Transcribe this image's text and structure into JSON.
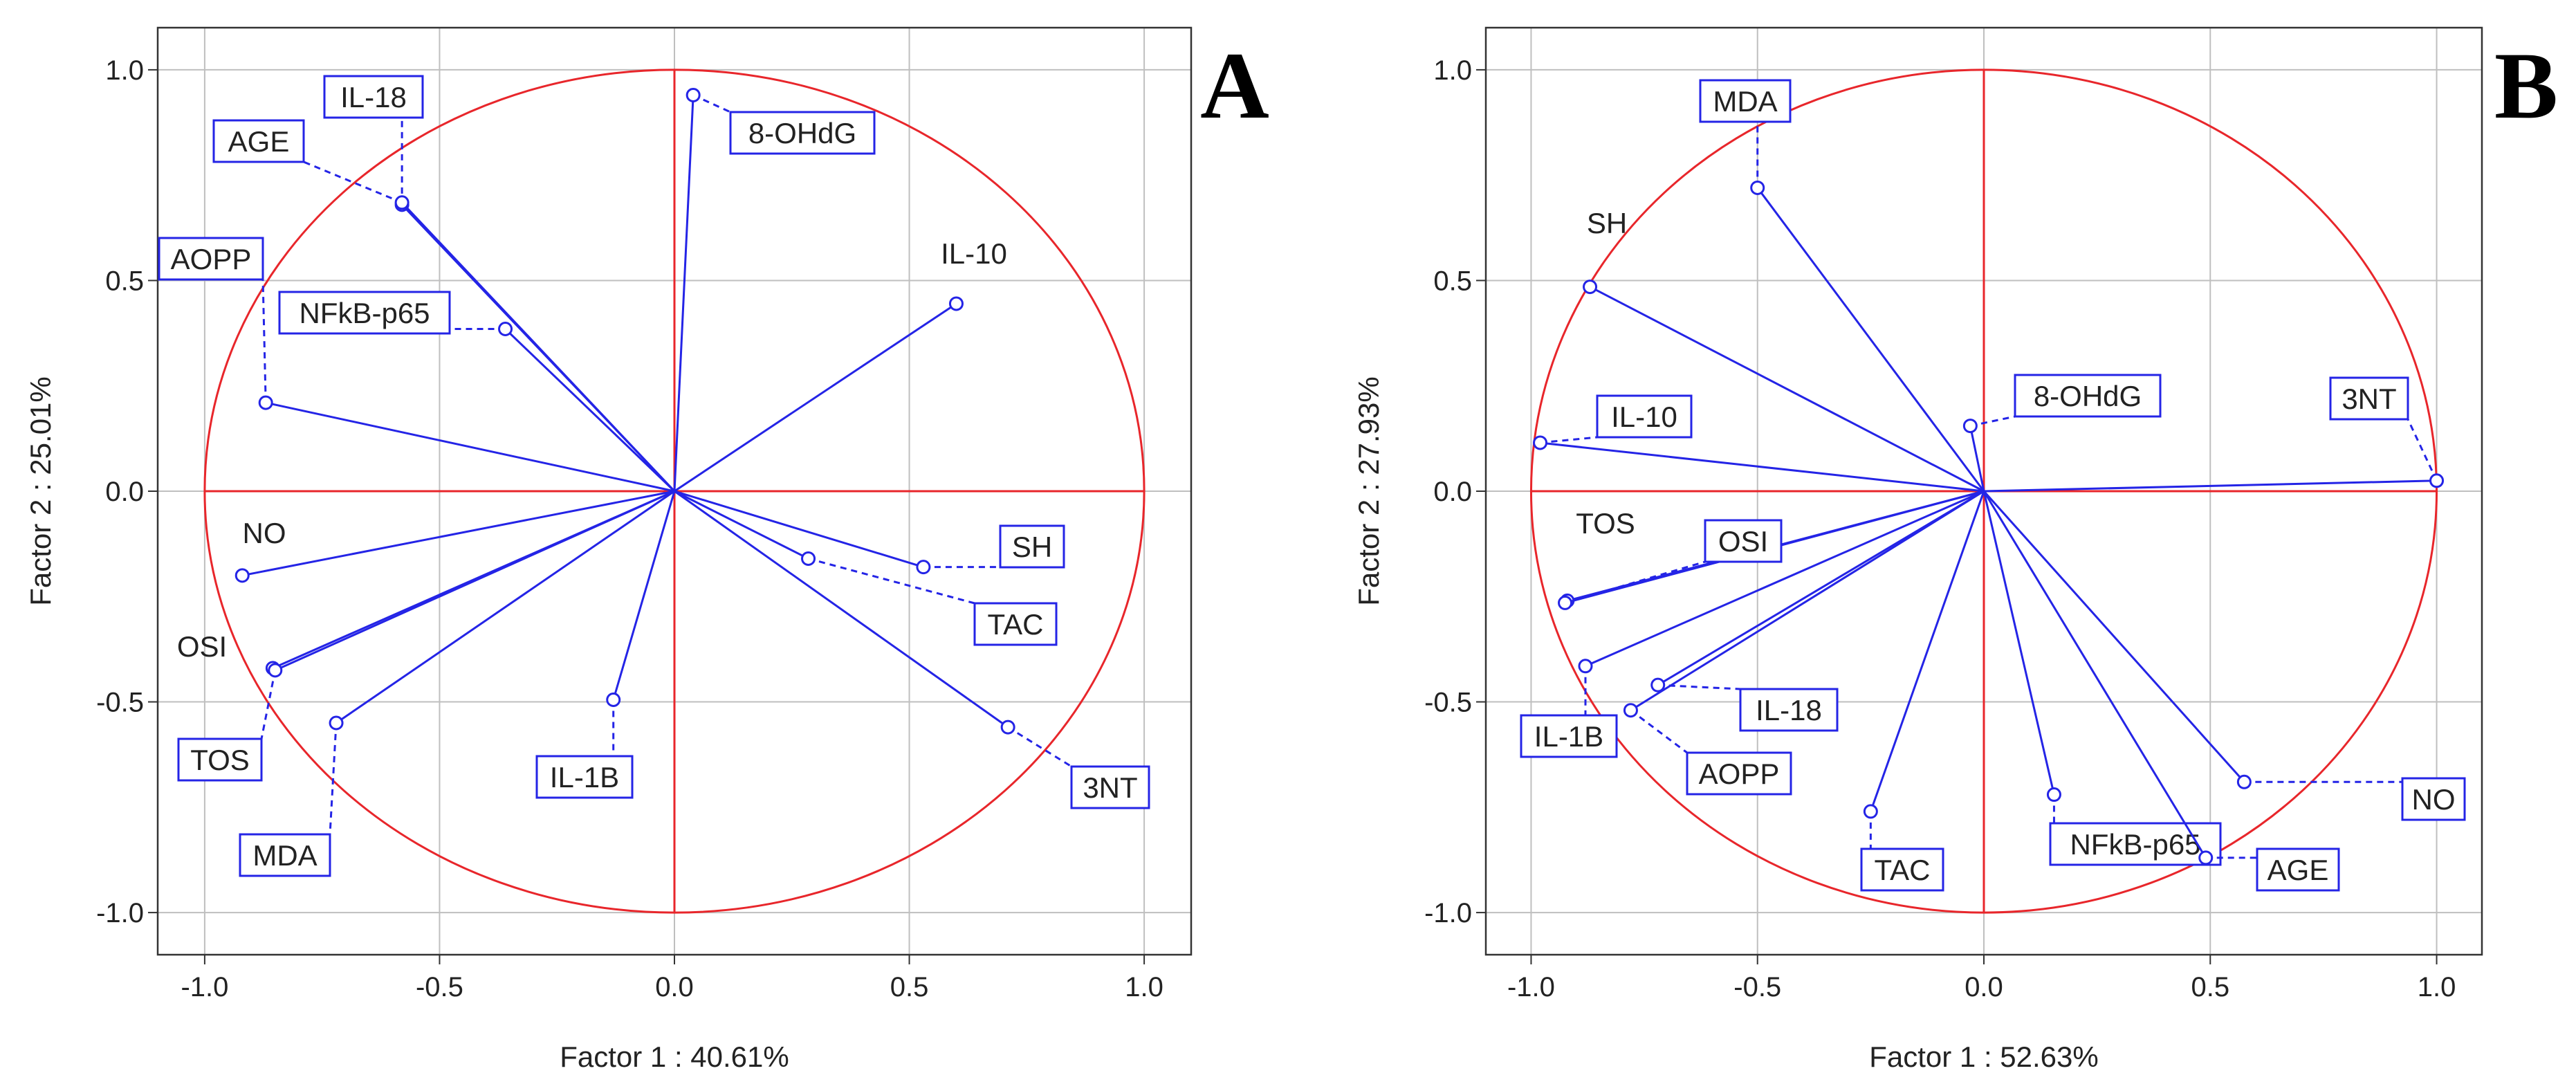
{
  "colors": {
    "circle": "#e8262b",
    "axis_lines": "#e8262b",
    "vector": "#2424e6",
    "label_border": "#2424e6",
    "text": "#222222",
    "grid": "#bfbfbf"
  },
  "chart_data": [
    {
      "type": "scatter",
      "subtype": "pca-correlation-circle",
      "panel": "A",
      "xlabel": "Factor 1 : 40.61%",
      "ylabel": "Factor 2 : 25.01%",
      "xlim": [
        -1.1,
        1.1
      ],
      "ylim": [
        -1.1,
        1.1
      ],
      "xticks": [
        "-1.0",
        "-0.5",
        "0.0",
        "0.5",
        "1.0"
      ],
      "yticks": [
        "-1.0",
        "-0.5",
        "0.0",
        "0.5",
        "1.0"
      ],
      "grid": true,
      "points": [
        {
          "name": "8-OHdG",
          "x": 0.04,
          "y": 0.94,
          "boxed": true
        },
        {
          "name": "IL-18",
          "x": -0.58,
          "y": 0.68,
          "boxed": true
        },
        {
          "name": "AGE",
          "x": -0.58,
          "y": 0.685,
          "boxed": true
        },
        {
          "name": "AOPP",
          "x": -0.87,
          "y": 0.21,
          "boxed": true
        },
        {
          "name": "NFkB-p65",
          "x": -0.36,
          "y": 0.385,
          "boxed": true
        },
        {
          "name": "IL-10",
          "x": 0.6,
          "y": 0.445,
          "boxed": false
        },
        {
          "name": "NO",
          "x": -0.92,
          "y": -0.2,
          "boxed": false
        },
        {
          "name": "OSI",
          "x": -0.855,
          "y": -0.42,
          "boxed": false
        },
        {
          "name": "TOS",
          "x": -0.85,
          "y": -0.425,
          "boxed": true
        },
        {
          "name": "MDA",
          "x": -0.72,
          "y": -0.55,
          "boxed": true
        },
        {
          "name": "IL-1B",
          "x": -0.13,
          "y": -0.495,
          "boxed": true
        },
        {
          "name": "TAC",
          "x": 0.285,
          "y": -0.16,
          "boxed": true
        },
        {
          "name": "SH",
          "x": 0.53,
          "y": -0.18,
          "boxed": true
        },
        {
          "name": "3NT",
          "x": 0.71,
          "y": -0.56,
          "boxed": true
        }
      ]
    },
    {
      "type": "scatter",
      "subtype": "pca-correlation-circle",
      "panel": "B",
      "xlabel": "Factor 1 : 52.63%",
      "ylabel": "Factor 2 : 27.93%",
      "xlim": [
        -1.1,
        1.1
      ],
      "ylim": [
        -1.1,
        1.1
      ],
      "xticks": [
        "-1.0",
        "-0.5",
        "0.0",
        "0.5",
        "1.0"
      ],
      "yticks": [
        "-1.0",
        "-0.5",
        "0.0",
        "0.5",
        "1.0"
      ],
      "grid": true,
      "points": [
        {
          "name": "MDA",
          "x": -0.5,
          "y": 0.72,
          "boxed": true
        },
        {
          "name": "SH",
          "x": -0.87,
          "y": 0.485,
          "boxed": false
        },
        {
          "name": "8-OHdG",
          "x": -0.03,
          "y": 0.155,
          "boxed": true
        },
        {
          "name": "IL-10",
          "x": -0.98,
          "y": 0.115,
          "boxed": true
        },
        {
          "name": "3NT",
          "x": 1.0,
          "y": 0.025,
          "boxed": true
        },
        {
          "name": "TOS",
          "x": -0.92,
          "y": -0.26,
          "boxed": false
        },
        {
          "name": "OSI",
          "x": -0.925,
          "y": -0.265,
          "boxed": true
        },
        {
          "name": "IL-1B",
          "x": -0.88,
          "y": -0.415,
          "boxed": true
        },
        {
          "name": "IL-18",
          "x": -0.72,
          "y": -0.46,
          "boxed": true
        },
        {
          "name": "AOPP",
          "x": -0.78,
          "y": -0.52,
          "boxed": true
        },
        {
          "name": "TAC",
          "x": -0.25,
          "y": -0.76,
          "boxed": true
        },
        {
          "name": "NFkB-p65",
          "x": 0.155,
          "y": -0.72,
          "boxed": true
        },
        {
          "name": "NO",
          "x": 0.575,
          "y": -0.69,
          "boxed": true
        },
        {
          "name": "AGE",
          "x": 0.49,
          "y": -0.87,
          "boxed": true
        }
      ]
    }
  ]
}
